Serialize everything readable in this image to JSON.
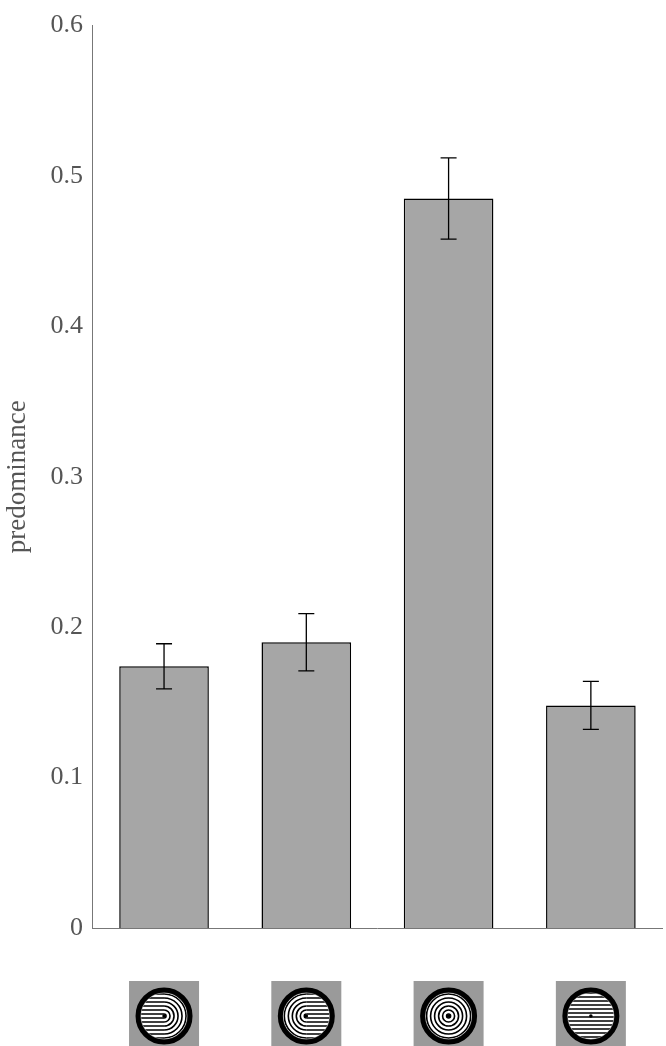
{
  "chart_data": {
    "type": "bar",
    "y_label": "predominance",
    "categories": [
      null,
      null,
      null,
      null
    ],
    "values": [
      0.174,
      0.19,
      0.485,
      0.148
    ],
    "errors": [
      0.015,
      0.019,
      0.027,
      0.016
    ],
    "color": "#a6a6a6",
    "ylim": [
      0,
      0.6
    ],
    "yticks": [
      0,
      0.1,
      0.2,
      0.3,
      0.4,
      0.5,
      0.6
    ],
    "grid": false,
    "tick_labels": "y"
  }
}
